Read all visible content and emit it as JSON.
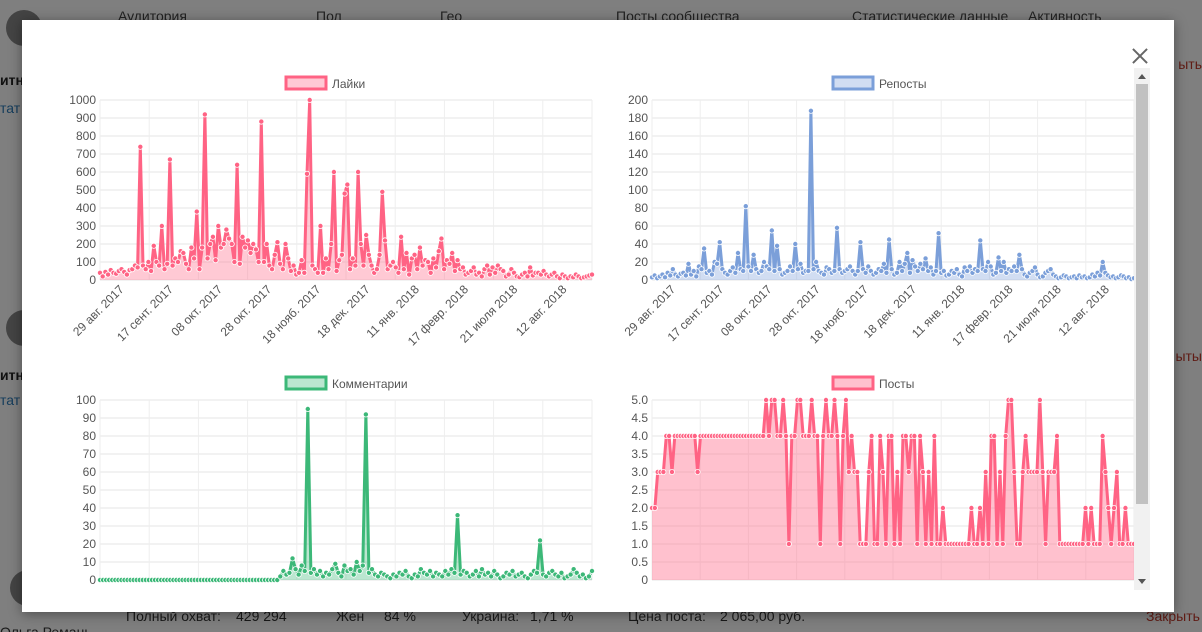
{
  "background": {
    "nav": [
      "Аудитория",
      "Пол",
      "Гео",
      "Посты сообщества",
      "Статистические данные",
      "Активность"
    ],
    "left_texts": [
      "итне",
      "итн"
    ],
    "left_links": [
      "тат",
      "тат"
    ],
    "right_red": [
      "ыть",
      "ыты"
    ],
    "bottom": {
      "reach_label": "Полный охват:",
      "reach_value": "429 294",
      "gender_label": "Жен",
      "gender_value": "84 %",
      "geo_label": "Украина:",
      "geo_value": "1,71 %",
      "price_label": "Цена поста:",
      "price_value": "2 065,00 руб.",
      "close_red": "Закрыть",
      "name_partial": "Ольга Ремань"
    }
  },
  "modal": {
    "close_icon": "close-icon"
  },
  "chart_data": [
    {
      "type": "line",
      "legend": "Лайки",
      "color": "#ff6384",
      "fill": "rgba(255,99,132,0.35)",
      "ylim": [
        0,
        1000
      ],
      "yticks": [
        "0",
        "100",
        "200",
        "300",
        "400",
        "500",
        "600",
        "700",
        "800",
        "900",
        "1000"
      ],
      "xticks": [
        "29 авг. 2017",
        "17 сент. 2017",
        "08 окт. 2017",
        "28 окт. 2017",
        "18 нояб. 2017",
        "18 дек. 2017",
        "11 янв. 2018",
        "17 февр. 2018",
        "21 июля 2018",
        "12 авг. 2018"
      ],
      "values": [
        40,
        20,
        45,
        30,
        55,
        40,
        35,
        50,
        60,
        45,
        30,
        55,
        60,
        80,
        70,
        740,
        80,
        60,
        100,
        50,
        190,
        100,
        80,
        300,
        60,
        90,
        670,
        80,
        120,
        100,
        160,
        150,
        90,
        60,
        180,
        120,
        380,
        60,
        180,
        920,
        120,
        200,
        240,
        110,
        300,
        180,
        200,
        280,
        230,
        200,
        100,
        640,
        90,
        240,
        180,
        220,
        150,
        200,
        170,
        100,
        880,
        100,
        200,
        80,
        60,
        140,
        210,
        90,
        60,
        200,
        120,
        50,
        80,
        30,
        40,
        110,
        40,
        590,
        1000,
        80,
        60,
        40,
        300,
        40,
        120,
        60,
        200,
        600,
        50,
        110,
        140,
        480,
        530,
        60,
        120,
        80,
        600,
        200,
        80,
        250,
        140,
        80,
        40,
        60,
        140,
        490,
        220,
        60,
        80,
        100,
        70,
        40,
        240,
        60,
        150,
        30,
        120,
        140,
        60,
        180,
        80,
        110,
        100,
        40,
        120,
        70,
        160,
        230,
        60,
        110,
        90,
        150,
        50,
        110,
        60,
        70,
        30,
        40,
        50,
        70,
        30,
        40,
        20,
        60,
        80,
        30,
        70,
        40,
        80,
        60,
        50,
        20,
        30,
        60,
        40,
        20,
        15,
        30,
        40,
        20,
        70,
        25,
        40,
        40,
        30,
        50,
        30,
        20,
        30,
        40,
        20,
        10,
        30,
        20,
        10,
        20,
        15,
        30,
        20,
        10,
        15,
        20,
        25,
        30
      ]
    },
    {
      "type": "line",
      "legend": "Репосты",
      "color": "#7b9fd9",
      "fill": "rgba(123,159,217,0.35)",
      "ylim": [
        0,
        200
      ],
      "yticks": [
        "0",
        "20",
        "40",
        "60",
        "80",
        "100",
        "120",
        "140",
        "160",
        "180",
        "200"
      ],
      "xticks": [
        "29 авг. 2017",
        "17 сент. 2017",
        "08 окт. 2017",
        "28 окт. 2017",
        "18 нояб. 2017",
        "18 дек. 2017",
        "11 янв. 2018",
        "17 февр. 2018",
        "21 июля 2018",
        "12 авг. 2018"
      ],
      "values": [
        3,
        5,
        2,
        4,
        6,
        3,
        8,
        5,
        12,
        6,
        4,
        7,
        8,
        5,
        18,
        6,
        10,
        4,
        15,
        12,
        35,
        8,
        10,
        6,
        20,
        18,
        42,
        12,
        8,
        6,
        10,
        14,
        8,
        30,
        12,
        10,
        82,
        15,
        10,
        28,
        12,
        8,
        10,
        20,
        15,
        12,
        55,
        10,
        38,
        12,
        6,
        8,
        10,
        15,
        10,
        40,
        12,
        18,
        8,
        10,
        10,
        188,
        12,
        20,
        10,
        8,
        6,
        14,
        12,
        8,
        10,
        58,
        12,
        8,
        10,
        12,
        15,
        10,
        6,
        10,
        42,
        12,
        8,
        15,
        10,
        6,
        8,
        12,
        10,
        18,
        8,
        45,
        12,
        6,
        8,
        20,
        10,
        18,
        30,
        8,
        22,
        15,
        10,
        18,
        12,
        24,
        10,
        14,
        6,
        10,
        52,
        8,
        10,
        5,
        6,
        10,
        8,
        12,
        6,
        4,
        14,
        10,
        15,
        8,
        12,
        10,
        44,
        12,
        10,
        20,
        15,
        6,
        8,
        25,
        10,
        20,
        8,
        12,
        10,
        15,
        10,
        28,
        12,
        6,
        4,
        8,
        10,
        14,
        6,
        3,
        4,
        8,
        10,
        12,
        6,
        4,
        2,
        3,
        5,
        4,
        2,
        3,
        4,
        2,
        5,
        3,
        4,
        2,
        3,
        6,
        4,
        8,
        5,
        20,
        8,
        5,
        3,
        4,
        2,
        3,
        5,
        4,
        2,
        3,
        1,
        2
      ]
    },
    {
      "type": "line",
      "legend": "Комментарии",
      "color": "#3cb878",
      "fill": "rgba(60,184,120,0.35)",
      "ylim": [
        0,
        100
      ],
      "yticks": [
        "0",
        "10",
        "20",
        "30",
        "40",
        "50",
        "60",
        "70",
        "80",
        "90",
        "100"
      ],
      "xticks": [],
      "values": [
        0,
        0,
        0,
        0,
        0,
        0,
        0,
        0,
        0,
        0,
        0,
        0,
        0,
        0,
        0,
        0,
        0,
        0,
        0,
        0,
        0,
        0,
        0,
        0,
        0,
        0,
        0,
        0,
        0,
        0,
        0,
        0,
        0,
        0,
        0,
        0,
        0,
        0,
        0,
        0,
        0,
        0,
        0,
        0,
        0,
        0,
        0,
        0,
        0,
        0,
        0,
        0,
        0,
        0,
        0,
        0,
        0,
        0,
        0,
        2,
        5,
        3,
        4,
        12,
        6,
        3,
        8,
        5,
        95,
        4,
        6,
        3,
        5,
        2,
        4,
        3,
        6,
        9,
        4,
        2,
        8,
        5,
        6,
        3,
        10,
        5,
        8,
        92,
        4,
        6,
        3,
        2,
        4,
        3,
        2,
        1,
        3,
        2,
        4,
        3,
        5,
        2,
        1,
        3,
        2,
        6,
        4,
        3,
        5,
        2,
        4,
        3,
        2,
        5,
        3,
        6,
        4,
        36,
        3,
        5,
        4,
        2,
        3,
        5,
        2,
        6,
        3,
        4,
        2,
        5,
        3,
        1,
        2,
        4,
        3,
        5,
        2,
        3,
        4,
        2,
        1,
        3,
        5,
        4,
        22,
        3,
        2,
        4,
        5,
        3,
        2,
        4,
        1,
        2,
        3,
        6,
        4,
        2,
        3,
        1,
        2,
        5
      ]
    },
    {
      "type": "line",
      "legend": "Посты",
      "color": "#ff6384",
      "fill": "rgba(255,99,132,0.4)",
      "ylim": [
        0,
        5
      ],
      "yticks": [
        "0",
        "0.5",
        "1.0",
        "1.5",
        "2.0",
        "2.5",
        "3.0",
        "3.5",
        "4.0",
        "4.5",
        "5.0"
      ],
      "xticks": [],
      "values": [
        2,
        2,
        3,
        3,
        3,
        4,
        4,
        3,
        4,
        4,
        4,
        4,
        4,
        4,
        4,
        4,
        3,
        4,
        4,
        4,
        4,
        4,
        4,
        4,
        4,
        4,
        4,
        4,
        4,
        4,
        4,
        4,
        4,
        4,
        4,
        4,
        4,
        4,
        4,
        4,
        5,
        4,
        5,
        5,
        4,
        4,
        5,
        4,
        1,
        4,
        4,
        5,
        5,
        4,
        4,
        4,
        5,
        4,
        4,
        1,
        4,
        5,
        4,
        4,
        5,
        4,
        1,
        4,
        5,
        3,
        4,
        3,
        3,
        1,
        1,
        1,
        3,
        4,
        1,
        1,
        4,
        3,
        1,
        4,
        4,
        1,
        3,
        1,
        4,
        4,
        3,
        4,
        4,
        1,
        4,
        3,
        1,
        3,
        1,
        4,
        1,
        1,
        2,
        1,
        1,
        1,
        1,
        1,
        1,
        1,
        1,
        1,
        2,
        1,
        1,
        2,
        1,
        3,
        1,
        4,
        4,
        1,
        3,
        1,
        4,
        5,
        5,
        3,
        1,
        1,
        3,
        4,
        3,
        3,
        3,
        3,
        5,
        3,
        1,
        3,
        3,
        3,
        4,
        1,
        1,
        1,
        1,
        1,
        1,
        1,
        1,
        1,
        2,
        1,
        2,
        1,
        1,
        1,
        4,
        3,
        2,
        1,
        2,
        3,
        1,
        1,
        2,
        1,
        1,
        1
      ]
    }
  ]
}
